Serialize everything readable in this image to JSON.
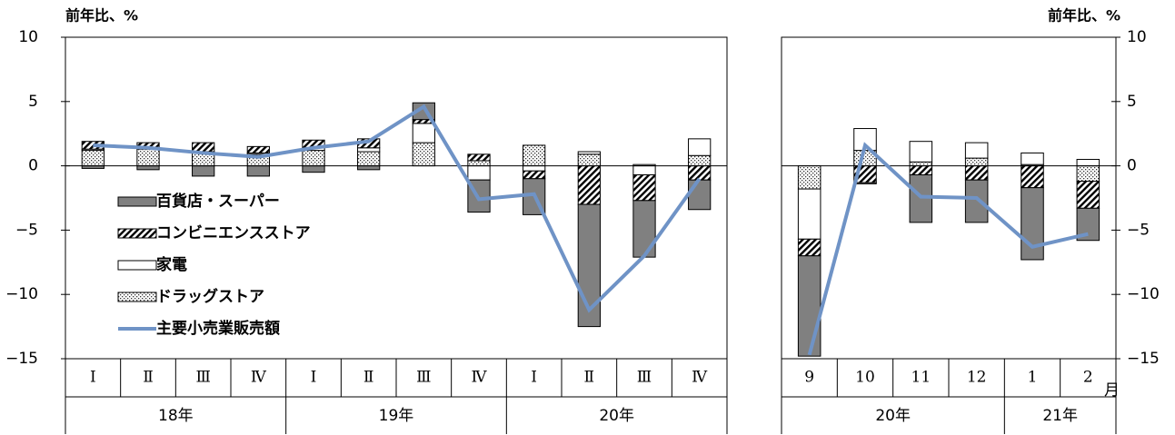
{
  "chart_data": [
    {
      "type": "bar",
      "ylabel": "前年比、%",
      "yaxis_side": "left",
      "legend": "center left",
      "categories": [
        "Ⅰ",
        "Ⅱ",
        "Ⅲ",
        "Ⅳ",
        "Ⅰ",
        "Ⅱ",
        "Ⅲ",
        "Ⅳ",
        "Ⅰ",
        "Ⅱ",
        "Ⅲ",
        "Ⅳ"
      ],
      "year_categories": [
        "18年",
        null,
        null,
        null,
        "19年",
        null,
        null,
        null,
        "20年",
        null,
        null,
        null
      ],
      "ylim": [
        -15,
        10
      ],
      "yticks": [
        {
          "value": -15,
          "label": "−15"
        },
        {
          "value": -10,
          "label": "−10"
        },
        {
          "value": -5,
          "label": "−5"
        },
        0,
        5,
        10
      ],
      "series": [
        {
          "name": "百貨店・スーパー",
          "color": "#808080",
          "pattern": "none",
          "values": [
            -0.2,
            -0.3,
            -0.8,
            -0.8,
            -0.5,
            -0.3,
            1.3,
            -2.5,
            -2.8,
            -9.5,
            -4.4,
            -2.3
          ]
        },
        {
          "name": "コンビニエンスストア",
          "color": "#000000",
          "pattern": "hatch",
          "values": [
            0.6,
            0.4,
            0.7,
            0.5,
            0.6,
            0.7,
            0.3,
            0.5,
            -0.6,
            -3.0,
            -2.0,
            -1.1
          ]
        },
        {
          "name": "家電",
          "color": "#ffffff",
          "pattern": "none",
          "values": [
            0.1,
            0.1,
            0,
            0.1,
            0.2,
            0.3,
            1.5,
            -1.1,
            -0.4,
            0.2,
            -0.7,
            1.3
          ]
        },
        {
          "name": "ドラッグストア",
          "color": "#000000",
          "pattern": "dots",
          "values": [
            1.2,
            1.3,
            1.1,
            0.9,
            1.2,
            1.1,
            1.8,
            0.4,
            1.6,
            0.9,
            0.1,
            0.8
          ]
        },
        {
          "name": "主要小売業販売額",
          "type": "line",
          "color": "#6f93c6",
          "values": [
            1.6,
            1.4,
            1.0,
            0.7,
            1.4,
            1.9,
            4.6,
            -2.6,
            -2.2,
            -11.2,
            -7.0,
            -1.0
          ]
        }
      ]
    },
    {
      "type": "bar",
      "ylabel": "前年比、%",
      "yaxis_side": "right",
      "annotation": "月",
      "categories": [
        "9",
        "10",
        "11",
        "12",
        "1",
        "2"
      ],
      "year_categories": [
        "20年",
        null,
        null,
        null,
        "21年",
        null
      ],
      "ylim": [
        -15,
        10
      ],
      "yticks": [
        {
          "value": -15,
          "label": "−15"
        },
        {
          "value": -10,
          "label": "−10"
        },
        {
          "value": -5,
          "label": "−5"
        },
        0,
        5,
        10
      ],
      "series": [
        {
          "color": "#808080",
          "pattern": "none",
          "values": [
            -7.8,
            -0.1,
            -3.7,
            -3.3,
            -5.6,
            -2.5
          ]
        },
        {
          "color": "#000000",
          "pattern": "hatch",
          "values": [
            -1.3,
            -1.3,
            -0.7,
            -1.1,
            -1.7,
            -2.1
          ]
        },
        {
          "color": "#ffffff",
          "pattern": "none",
          "values": [
            -3.9,
            1.7,
            1.6,
            1.2,
            0.9,
            0.5
          ]
        },
        {
          "color": "#000000",
          "pattern": "dots",
          "values": [
            -1.8,
            1.2,
            0.3,
            0.6,
            0.1,
            -1.2
          ]
        },
        {
          "type": "line",
          "color": "#6f93c6",
          "values": [
            -14.7,
            1.6,
            -2.4,
            -2.5,
            -6.3,
            -5.3
          ]
        }
      ]
    }
  ]
}
